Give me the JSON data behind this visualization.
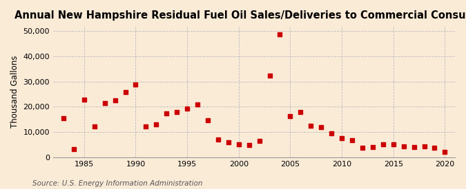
{
  "title": "Annual New Hampshire Residual Fuel Oil Sales/Deliveries to Commercial Consumers",
  "ylabel": "Thousand Gallons",
  "source": "Source: U.S. Energy Information Administration",
  "background_color": "#faebd7",
  "plot_background_color": "#faebd7",
  "marker_color": "#cc0000",
  "years": [
    1983,
    1984,
    1985,
    1986,
    1987,
    1988,
    1989,
    1990,
    1991,
    1992,
    1993,
    1994,
    1995,
    1996,
    1997,
    1998,
    1999,
    2000,
    2001,
    2002,
    2003,
    2004,
    2005,
    2006,
    2007,
    2008,
    2009,
    2010,
    2011,
    2012,
    2013,
    2014,
    2015,
    2016,
    2017,
    2018,
    2019,
    2020
  ],
  "values": [
    15400,
    3200,
    22800,
    12200,
    21500,
    22500,
    25700,
    28800,
    12300,
    13000,
    17500,
    17800,
    19200,
    21000,
    14700,
    7000,
    5800,
    5100,
    4800,
    6400,
    32500,
    48700,
    16200,
    17800,
    12500,
    11800,
    9500,
    7500,
    6800,
    3800,
    4000,
    5000,
    5000,
    4400,
    3900,
    4200,
    3800,
    2200
  ],
  "xlim": [
    1982,
    2021
  ],
  "ylim": [
    0,
    52000
  ],
  "yticks": [
    0,
    10000,
    20000,
    30000,
    40000,
    50000
  ],
  "xticks": [
    1985,
    1990,
    1995,
    2000,
    2005,
    2010,
    2015,
    2020
  ],
  "grid_color": "#bbbbbb",
  "title_fontsize": 10.5,
  "label_fontsize": 8.5,
  "tick_fontsize": 8,
  "source_fontsize": 7.5
}
